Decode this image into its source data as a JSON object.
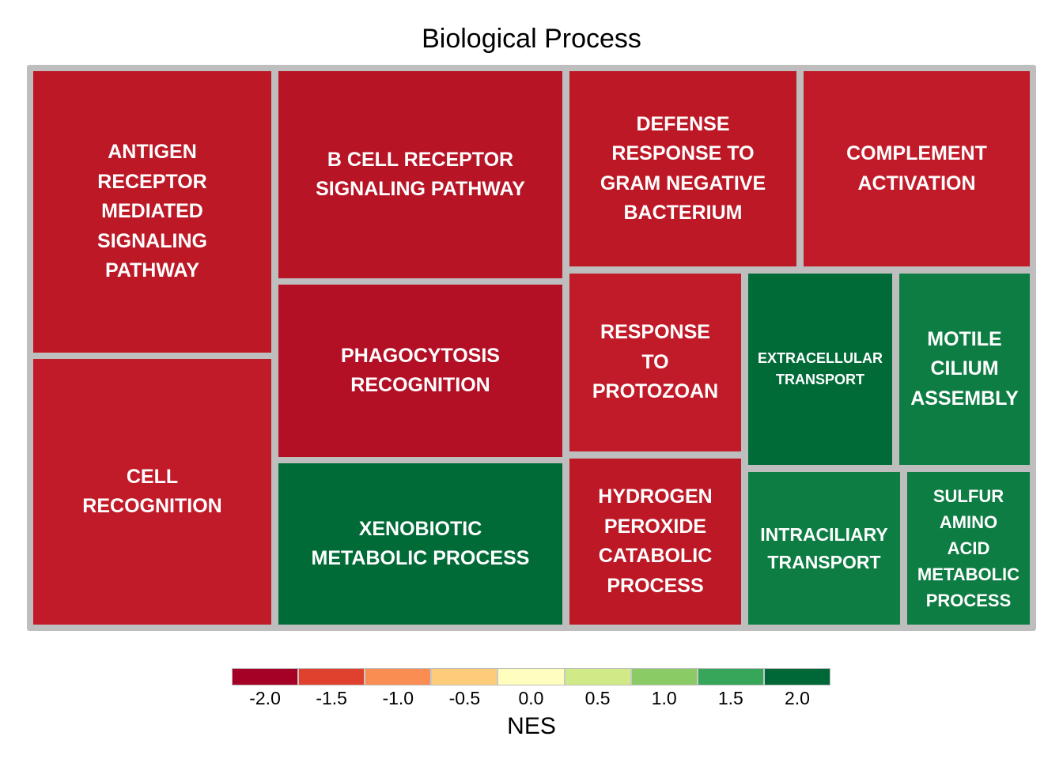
{
  "chart_data": {
    "type": "treemap",
    "title": "Biological Process",
    "color_variable": "NES",
    "legend": {
      "title": "NES",
      "placement": "bottom",
      "ticks": [
        "-2.0",
        "-1.5",
        "-1.0",
        "-0.5",
        "0.0",
        "0.5",
        "1.0",
        "1.5",
        "2.0"
      ],
      "colors": [
        "#a50026",
        "#e0412f",
        "#f98d52",
        "#fdcc7a",
        "#fffebe",
        "#cfea86",
        "#8bcb66",
        "#37a55a",
        "#006837"
      ]
    },
    "tiles": [
      {
        "label": "ANTIGEN\nRECEPTOR\nMEDIATED\nSIGNALING\nPATHWAY",
        "nes": -1.85,
        "color": "#bc1826",
        "font": 25
      },
      {
        "label": "CELL\nRECOGNITION",
        "nes": -1.8,
        "color": "#c11b29",
        "font": 25
      },
      {
        "label": "B CELL RECEPTOR\nSIGNALING PATHWAY",
        "nes": -1.95,
        "color": "#b71426",
        "font": 25
      },
      {
        "label": "PHAGOCYTOSIS\nRECOGNITION",
        "nes": -2.05,
        "color": "#b31026",
        "font": 25
      },
      {
        "label": "XENOBIOTIC\nMETABOLIC PROCESS",
        "nes": 2.1,
        "color": "#016b38",
        "font": 25
      },
      {
        "label": "DEFENSE\nRESPONSE TO\nGRAM NEGATIVE\nBACTERIUM",
        "nes": -1.85,
        "color": "#bd1826",
        "font": 25
      },
      {
        "label": "COMPLEMENT\nACTIVATION",
        "nes": -1.8,
        "color": "#c11b29",
        "font": 25
      },
      {
        "label": "RESPONSE\nTO\nPROTOZOAN",
        "nes": -1.8,
        "color": "#c11b29",
        "font": 25
      },
      {
        "label": "HYDROGEN\nPEROXIDE\nCATABOLIC\nPROCESS",
        "nes": -1.85,
        "color": "#bd1826",
        "font": 25
      },
      {
        "label": "EXTRACELLULAR\nTRANSPORT",
        "nes": 2.1,
        "color": "#016b38",
        "font": 18
      },
      {
        "label": "MOTILE\nCILIUM\nASSEMBLY",
        "nes": 1.9,
        "color": "#0d7d43",
        "font": 25
      },
      {
        "label": "INTRACILIARY\nTRANSPORT",
        "nes": 1.9,
        "color": "#0d7d43",
        "font": 23
      },
      {
        "label": "SULFUR\nAMINO\nACID\nMETABOLIC\nPROCESS",
        "nes": 1.9,
        "color": "#0d7d43",
        "font": 22
      }
    ]
  }
}
